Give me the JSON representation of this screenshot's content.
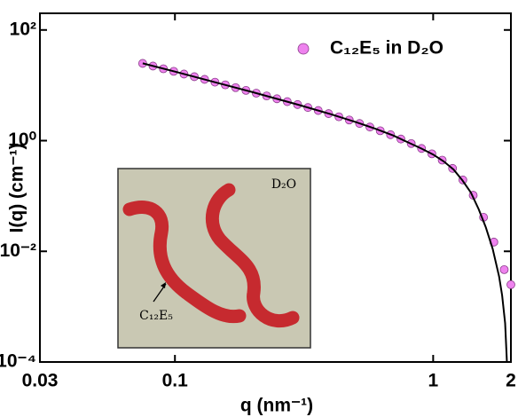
{
  "chart_data": {
    "type": "scatter",
    "x_label": "q (nm⁻¹)",
    "y_label": "I(q) (cm⁻¹)",
    "xscale": "log",
    "yscale": "log",
    "xlim": [
      0.03,
      2
    ],
    "ylim": [
      0.0001,
      200
    ],
    "xticks": [
      0.03,
      0.1,
      1,
      2
    ],
    "yticks": [
      {
        "value": 0.0001,
        "label": "10⁻⁴"
      },
      {
        "value": 0.01,
        "label": "10⁻²"
      },
      {
        "value": 1,
        "label": "10⁰"
      },
      {
        "value": 100,
        "label": "10²"
      }
    ],
    "legend": "top-right",
    "annotations": [
      "D₂O",
      "C₁₂E₅"
    ],
    "series": [
      {
        "name": "C₁₂E₅ in D₂O",
        "color": "#ee82ee",
        "mode": "markers",
        "x": [
          0.075,
          0.0822,
          0.0902,
          0.0989,
          0.1084,
          0.1189,
          0.1303,
          0.1429,
          0.1567,
          0.1718,
          0.1884,
          0.2065,
          0.2265,
          0.2483,
          0.2723,
          0.2985,
          0.3273,
          0.3589,
          0.3936,
          0.4315,
          0.4732,
          0.5188,
          0.5689,
          0.6237,
          0.6839,
          0.7499,
          0.8222,
          0.9016,
          0.9886,
          1.084,
          1.189,
          1.303,
          1.429,
          1.567,
          1.718,
          1.884,
          2.0
        ],
        "values": [
          24.9,
          22.3,
          19.9,
          17.9,
          16.0,
          14.3,
          12.8,
          11.4,
          10.2,
          9.08,
          8.09,
          7.21,
          6.43,
          5.71,
          5.07,
          4.49,
          3.97,
          3.5,
          3.08,
          2.7,
          2.36,
          2.04,
          1.76,
          1.51,
          1.28,
          1.07,
          0.887,
          0.723,
          0.578,
          0.444,
          0.315,
          0.195,
          0.103,
          0.0412,
          0.0147,
          0.00467,
          0.0025
        ]
      },
      {
        "color": "#000000",
        "mode": "line",
        "x": [
          0.075,
          0.1,
          0.15,
          0.2,
          0.3,
          0.4,
          0.5,
          0.6,
          0.7,
          0.8,
          0.9,
          1.0,
          1.1,
          1.2,
          1.3,
          1.4,
          1.5,
          1.6,
          1.7,
          1.8,
          1.85,
          1.9,
          1.93
        ],
        "values": [
          24.9,
          17.7,
          10.7,
          7.5,
          4.47,
          3.02,
          2.18,
          1.63,
          1.24,
          0.93,
          0.72,
          0.56,
          0.42,
          0.3,
          0.19,
          0.115,
          0.058,
          0.027,
          0.011,
          0.0035,
          0.0016,
          0.0005,
          0.0001
        ]
      }
    ]
  }
}
